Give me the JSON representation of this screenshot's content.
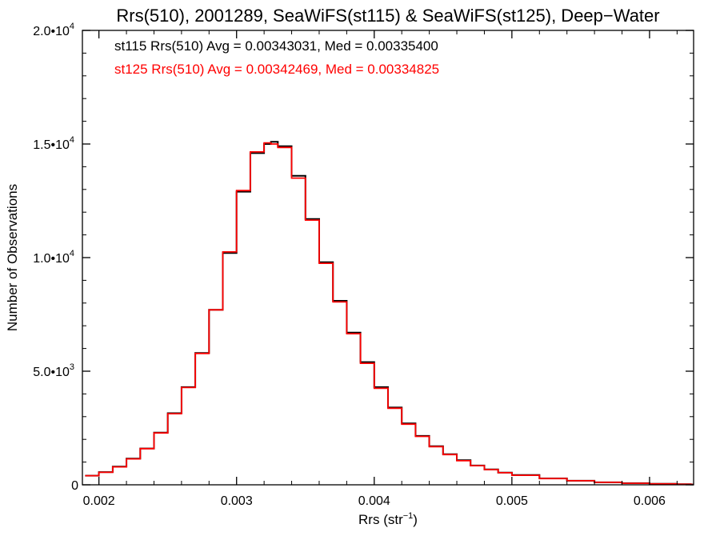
{
  "chart_data": {
    "type": "line",
    "title": "Rrs(510), 2001289, SeaWiFS(st115) & SeaWiFS(st125), Deep−Water",
    "xlabel": {
      "text": "Rrs (str",
      "sup": "−1",
      "end": ")"
    },
    "ylabel": "Number of Observations",
    "xlim": [
      0.00188,
      0.00632
    ],
    "ylim": [
      0,
      20000
    ],
    "xticks": [
      {
        "value": 0.002,
        "label": "0.002"
      },
      {
        "value": 0.003,
        "label": "0.003"
      },
      {
        "value": 0.004,
        "label": "0.004"
      },
      {
        "value": 0.005,
        "label": "0.005"
      },
      {
        "value": 0.006,
        "label": "0.006"
      }
    ],
    "yticks": [
      {
        "value": 0,
        "label": "0",
        "sup": ""
      },
      {
        "value": 5000,
        "label": "5.0•10",
        "sup": "3"
      },
      {
        "value": 10000,
        "label": "1.0•10",
        "sup": "4"
      },
      {
        "value": 15000,
        "label": "1.5•10",
        "sup": "4"
      },
      {
        "value": 20000,
        "label": "2.0•10",
        "sup": "4"
      }
    ],
    "annotations": [
      {
        "text": "st115 Rrs(510) Avg = 0.00343031, Med = 0.00335400",
        "color": "#000000"
      },
      {
        "text": "st125 Rrs(510) Avg = 0.00342469, Med = 0.00334825",
        "color": "#ff0000"
      }
    ],
    "series": [
      {
        "color": "#000000",
        "x": [
          0.0019,
          0.002,
          0.0021,
          0.0022,
          0.0023,
          0.0024,
          0.0025,
          0.0026,
          0.0027,
          0.0028,
          0.0029,
          0.003,
          0.0031,
          0.0032,
          0.00325,
          0.0033,
          0.0034,
          0.0035,
          0.0036,
          0.0037,
          0.0038,
          0.0039,
          0.004,
          0.0041,
          0.0042,
          0.0043,
          0.0044,
          0.0045,
          0.0046,
          0.0047,
          0.0048,
          0.0049,
          0.005,
          0.0052,
          0.0054,
          0.0056,
          0.0058,
          0.006,
          0.0062,
          0.0063
        ],
        "y": [
          400,
          560,
          800,
          1150,
          1600,
          2300,
          3150,
          4300,
          5800,
          7700,
          10200,
          12900,
          14600,
          15000,
          15100,
          14900,
          13600,
          11700,
          9800,
          8100,
          6700,
          5400,
          4300,
          3400,
          2700,
          2150,
          1700,
          1350,
          1080,
          850,
          680,
          540,
          430,
          280,
          180,
          110,
          70,
          45,
          25,
          15
        ]
      },
      {
        "color": "#ff0000",
        "x": [
          0.0019,
          0.002,
          0.0021,
          0.0022,
          0.0023,
          0.0024,
          0.0025,
          0.0026,
          0.0027,
          0.0028,
          0.0029,
          0.003,
          0.0031,
          0.0032,
          0.00325,
          0.0033,
          0.0034,
          0.0035,
          0.0036,
          0.0037,
          0.0038,
          0.0039,
          0.004,
          0.0041,
          0.0042,
          0.0043,
          0.0044,
          0.0045,
          0.0046,
          0.0047,
          0.0048,
          0.0049,
          0.005,
          0.0052,
          0.0054,
          0.0056,
          0.0058,
          0.006,
          0.0062,
          0.0063
        ],
        "y": [
          400,
          550,
          790,
          1140,
          1590,
          2280,
          3130,
          4280,
          5780,
          7700,
          10250,
          12950,
          14650,
          15050,
          15000,
          14850,
          13500,
          11650,
          9750,
          8050,
          6650,
          5350,
          4250,
          3370,
          2670,
          2130,
          1680,
          1330,
          1060,
          840,
          670,
          530,
          420,
          275,
          178,
          108,
          68,
          44,
          24,
          14
        ]
      }
    ]
  }
}
